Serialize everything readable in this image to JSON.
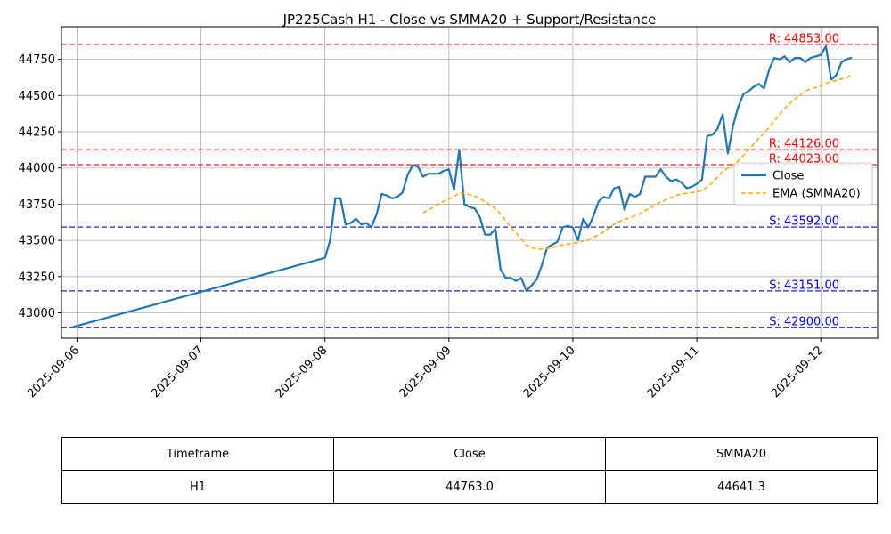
{
  "chart_data": {
    "type": "line",
    "title": "JP225Cash H1 - Close vs SMMA20 + Support/Resistance",
    "xlabel": "",
    "ylabel": "",
    "x_ticks": [
      "2025-09-06",
      "2025-09-07",
      "2025-09-08",
      "2025-09-09",
      "2025-09-10",
      "2025-09-11",
      "2025-09-12"
    ],
    "y_ticks": [
      43000,
      43250,
      43500,
      43750,
      44000,
      44250,
      44500,
      44750
    ],
    "xlim": [
      "2025-09-05T21:00",
      "2025-09-12T11:00"
    ],
    "ylim": [
      42825,
      44975
    ],
    "grid": true,
    "legend_position": "center-right",
    "series": [
      {
        "name": "Close",
        "color": "#1f77b4",
        "style": "solid",
        "points": [
          [
            "2025-09-05T23:00",
            42900
          ],
          [
            "2025-09-06T00:00",
            42910
          ],
          [
            "2025-09-08T00:00",
            43380
          ],
          [
            "2025-09-08T01:00",
            43500
          ],
          [
            "2025-09-08T02:00",
            43790
          ],
          [
            "2025-09-08T03:00",
            43790
          ],
          [
            "2025-09-08T04:00",
            43610
          ],
          [
            "2025-09-08T05:00",
            43620
          ],
          [
            "2025-09-08T06:00",
            43650
          ],
          [
            "2025-09-08T07:00",
            43610
          ],
          [
            "2025-09-08T08:00",
            43620
          ],
          [
            "2025-09-08T09:00",
            43590
          ],
          [
            "2025-09-08T10:00",
            43680
          ],
          [
            "2025-09-08T11:00",
            43820
          ],
          [
            "2025-09-08T12:00",
            43810
          ],
          [
            "2025-09-08T13:00",
            43790
          ],
          [
            "2025-09-08T14:00",
            43800
          ],
          [
            "2025-09-08T15:00",
            43830
          ],
          [
            "2025-09-08T16:00",
            43950
          ],
          [
            "2025-09-08T17:00",
            44020
          ],
          [
            "2025-09-08T18:00",
            44010
          ],
          [
            "2025-09-08T19:00",
            43940
          ],
          [
            "2025-09-08T20:00",
            43960
          ],
          [
            "2025-09-08T21:00",
            43960
          ],
          [
            "2025-09-08T22:00",
            43960
          ],
          [
            "2025-09-08T23:00",
            43980
          ],
          [
            "2025-09-09T00:00",
            43990
          ],
          [
            "2025-09-09T01:00",
            43850
          ],
          [
            "2025-09-09T02:00",
            44126
          ],
          [
            "2025-09-09T03:00",
            43750
          ],
          [
            "2025-09-09T04:00",
            43730
          ],
          [
            "2025-09-09T05:00",
            43720
          ],
          [
            "2025-09-09T06:00",
            43660
          ],
          [
            "2025-09-09T07:00",
            43540
          ],
          [
            "2025-09-09T08:00",
            43540
          ],
          [
            "2025-09-09T09:00",
            43580
          ],
          [
            "2025-09-09T10:00",
            43300
          ],
          [
            "2025-09-09T11:00",
            43240
          ],
          [
            "2025-09-09T12:00",
            43240
          ],
          [
            "2025-09-09T13:00",
            43220
          ],
          [
            "2025-09-09T14:00",
            43240
          ],
          [
            "2025-09-09T15:00",
            43151
          ],
          [
            "2025-09-09T16:00",
            43190
          ],
          [
            "2025-09-09T17:00",
            43230
          ],
          [
            "2025-09-09T18:00",
            43330
          ],
          [
            "2025-09-09T19:00",
            43450
          ],
          [
            "2025-09-09T20:00",
            43470
          ],
          [
            "2025-09-09T21:00",
            43490
          ],
          [
            "2025-09-09T22:00",
            43590
          ],
          [
            "2025-09-09T23:00",
            43600
          ],
          [
            "2025-09-10T00:00",
            43590
          ],
          [
            "2025-09-10T01:00",
            43500
          ],
          [
            "2025-09-10T02:00",
            43650
          ],
          [
            "2025-09-10T03:00",
            43590
          ],
          [
            "2025-09-10T04:00",
            43670
          ],
          [
            "2025-09-10T05:00",
            43770
          ],
          [
            "2025-09-10T06:00",
            43800
          ],
          [
            "2025-09-10T07:00",
            43790
          ],
          [
            "2025-09-10T08:00",
            43860
          ],
          [
            "2025-09-10T09:00",
            43870
          ],
          [
            "2025-09-10T10:00",
            43710
          ],
          [
            "2025-09-10T11:00",
            43820
          ],
          [
            "2025-09-10T12:00",
            43800
          ],
          [
            "2025-09-10T13:00",
            43820
          ],
          [
            "2025-09-10T14:00",
            43940
          ],
          [
            "2025-09-10T15:00",
            43940
          ],
          [
            "2025-09-10T16:00",
            43940
          ],
          [
            "2025-09-10T17:00",
            43990
          ],
          [
            "2025-09-10T18:00",
            43940
          ],
          [
            "2025-09-10T19:00",
            43910
          ],
          [
            "2025-09-10T20:00",
            43920
          ],
          [
            "2025-09-10T21:00",
            43900
          ],
          [
            "2025-09-10T22:00",
            43860
          ],
          [
            "2025-09-10T23:00",
            43870
          ],
          [
            "2025-09-11T00:00",
            43890
          ],
          [
            "2025-09-11T01:00",
            43920
          ],
          [
            "2025-09-11T02:00",
            44220
          ],
          [
            "2025-09-11T03:00",
            44230
          ],
          [
            "2025-09-11T04:00",
            44270
          ],
          [
            "2025-09-11T05:00",
            44370
          ],
          [
            "2025-09-11T06:00",
            44100
          ],
          [
            "2025-09-11T07:00",
            44290
          ],
          [
            "2025-09-11T08:00",
            44420
          ],
          [
            "2025-09-11T09:00",
            44510
          ],
          [
            "2025-09-11T10:00",
            44530
          ],
          [
            "2025-09-11T11:00",
            44560
          ],
          [
            "2025-09-11T12:00",
            44580
          ],
          [
            "2025-09-11T13:00",
            44550
          ],
          [
            "2025-09-11T14:00",
            44680
          ],
          [
            "2025-09-11T15:00",
            44760
          ],
          [
            "2025-09-11T16:00",
            44750
          ],
          [
            "2025-09-11T17:00",
            44770
          ],
          [
            "2025-09-11T18:00",
            44730
          ],
          [
            "2025-09-11T19:00",
            44760
          ],
          [
            "2025-09-11T20:00",
            44760
          ],
          [
            "2025-09-11T21:00",
            44730
          ],
          [
            "2025-09-11T22:00",
            44760
          ],
          [
            "2025-09-11T23:00",
            44770
          ],
          [
            "2025-09-12T00:00",
            44780
          ],
          [
            "2025-09-12T01:00",
            44840
          ],
          [
            "2025-09-12T02:00",
            44610
          ],
          [
            "2025-09-12T03:00",
            44640
          ],
          [
            "2025-09-12T04:00",
            44730
          ],
          [
            "2025-09-12T05:00",
            44750
          ],
          [
            "2025-09-12T06:00",
            44763
          ]
        ]
      },
      {
        "name": "EMA (SMMA20)",
        "color": "#ffa500",
        "style": "dashed",
        "points": [
          [
            "2025-09-08T19:00",
            43690
          ],
          [
            "2025-09-08T20:00",
            43710
          ],
          [
            "2025-09-08T21:00",
            43730
          ],
          [
            "2025-09-08T22:00",
            43750
          ],
          [
            "2025-09-08T23:00",
            43770
          ],
          [
            "2025-09-09T00:00",
            43785
          ],
          [
            "2025-09-09T01:00",
            43800
          ],
          [
            "2025-09-09T02:00",
            43830
          ],
          [
            "2025-09-09T03:00",
            43825
          ],
          [
            "2025-09-09T04:00",
            43815
          ],
          [
            "2025-09-09T05:00",
            43805
          ],
          [
            "2025-09-09T06:00",
            43790
          ],
          [
            "2025-09-09T07:00",
            43765
          ],
          [
            "2025-09-09T08:00",
            43745
          ],
          [
            "2025-09-09T09:00",
            43720
          ],
          [
            "2025-09-09T10:00",
            43680
          ],
          [
            "2025-09-09T11:00",
            43635
          ],
          [
            "2025-09-09T12:00",
            43590
          ],
          [
            "2025-09-09T13:00",
            43550
          ],
          [
            "2025-09-09T14:00",
            43510
          ],
          [
            "2025-09-09T15:00",
            43470
          ],
          [
            "2025-09-09T16:00",
            43450
          ],
          [
            "2025-09-09T17:00",
            43440
          ],
          [
            "2025-09-09T18:00",
            43440
          ],
          [
            "2025-09-09T19:00",
            43445
          ],
          [
            "2025-09-09T20:00",
            43450
          ],
          [
            "2025-09-09T21:00",
            43460
          ],
          [
            "2025-09-09T22:00",
            43470
          ],
          [
            "2025-09-09T23:00",
            43475
          ],
          [
            "2025-09-10T00:00",
            43480
          ],
          [
            "2025-09-10T01:00",
            43485
          ],
          [
            "2025-09-10T02:00",
            43495
          ],
          [
            "2025-09-10T03:00",
            43505
          ],
          [
            "2025-09-10T04:00",
            43520
          ],
          [
            "2025-09-10T05:00",
            43540
          ],
          [
            "2025-09-10T06:00",
            43560
          ],
          [
            "2025-09-10T07:00",
            43585
          ],
          [
            "2025-09-10T08:00",
            43610
          ],
          [
            "2025-09-10T09:00",
            43630
          ],
          [
            "2025-09-10T10:00",
            43645
          ],
          [
            "2025-09-10T11:00",
            43655
          ],
          [
            "2025-09-10T12:00",
            43670
          ],
          [
            "2025-09-10T13:00",
            43685
          ],
          [
            "2025-09-10T14:00",
            43705
          ],
          [
            "2025-09-10T15:00",
            43725
          ],
          [
            "2025-09-10T16:00",
            43745
          ],
          [
            "2025-09-10T17:00",
            43765
          ],
          [
            "2025-09-10T18:00",
            43780
          ],
          [
            "2025-09-10T19:00",
            43795
          ],
          [
            "2025-09-10T20:00",
            43810
          ],
          [
            "2025-09-10T21:00",
            43820
          ],
          [
            "2025-09-10T22:00",
            43825
          ],
          [
            "2025-09-10T23:00",
            43830
          ],
          [
            "2025-09-11T00:00",
            43835
          ],
          [
            "2025-09-11T01:00",
            43845
          ],
          [
            "2025-09-11T02:00",
            43870
          ],
          [
            "2025-09-11T03:00",
            43900
          ],
          [
            "2025-09-11T04:00",
            43935
          ],
          [
            "2025-09-11T05:00",
            43975
          ],
          [
            "2025-09-11T06:00",
            44000
          ],
          [
            "2025-09-11T07:00",
            44020
          ],
          [
            "2025-09-11T08:00",
            44050
          ],
          [
            "2025-09-11T09:00",
            44085
          ],
          [
            "2025-09-11T10:00",
            44125
          ],
          [
            "2025-09-11T11:00",
            44165
          ],
          [
            "2025-09-11T12:00",
            44205
          ],
          [
            "2025-09-11T13:00",
            44240
          ],
          [
            "2025-09-11T14:00",
            44280
          ],
          [
            "2025-09-11T15:00",
            44325
          ],
          [
            "2025-09-11T16:00",
            44370
          ],
          [
            "2025-09-11T17:00",
            44410
          ],
          [
            "2025-09-11T18:00",
            44445
          ],
          [
            "2025-09-11T19:00",
            44475
          ],
          [
            "2025-09-11T20:00",
            44505
          ],
          [
            "2025-09-11T21:00",
            44530
          ],
          [
            "2025-09-11T22:00",
            44545
          ],
          [
            "2025-09-11T23:00",
            44555
          ],
          [
            "2025-09-12T00:00",
            44565
          ],
          [
            "2025-09-12T01:00",
            44585
          ],
          [
            "2025-09-12T02:00",
            44595
          ],
          [
            "2025-09-12T03:00",
            44605
          ],
          [
            "2025-09-12T04:00",
            44615
          ],
          [
            "2025-09-12T05:00",
            44625
          ],
          [
            "2025-09-12T06:00",
            44641.3
          ]
        ]
      }
    ],
    "hlines": [
      {
        "value": 44853,
        "label": "R: 44853.00",
        "color": "#ff0000",
        "kind": "resistance"
      },
      {
        "value": 44126,
        "label": "R: 44126.00",
        "color": "#ff0000",
        "kind": "resistance"
      },
      {
        "value": 44023,
        "label": "R: 44023.00",
        "color": "#ff0000",
        "kind": "resistance"
      },
      {
        "value": 43592,
        "label": "S: 43592.00",
        "color": "#0000ff",
        "kind": "support"
      },
      {
        "value": 43151,
        "label": "S: 43151.00",
        "color": "#0000ff",
        "kind": "support"
      },
      {
        "value": 42900,
        "label": "S: 42900.00",
        "color": "#0000ff",
        "kind": "support"
      }
    ]
  },
  "table": {
    "headers": [
      "Timeframe",
      "Close",
      "SMMA20"
    ],
    "row": [
      "H1",
      "44763.0",
      "44641.3"
    ]
  }
}
